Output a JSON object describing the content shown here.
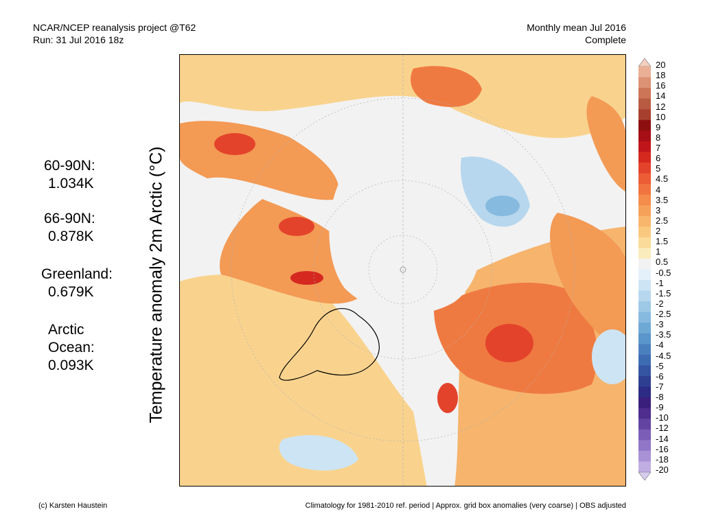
{
  "header": {
    "title_line1": "NCAR/NCEP reanalysis project @T62",
    "title_line2": "Run: 31 Jul 2016 18z",
    "right_line1": "Monthly mean Jul 2016",
    "right_line2": "Complete"
  },
  "vertical_label": "Temperature anomaly 2m Arctic (°C)",
  "stats": [
    {
      "label": "60-90N:",
      "value": "1.034K"
    },
    {
      "label": "66-90N:",
      "value": "0.878K"
    },
    {
      "label": "Greenland:",
      "value": "0.679K"
    },
    {
      "label": "Arctic",
      "label2": "Ocean:",
      "value": "0.093K"
    }
  ],
  "colorbar": {
    "ticks": [
      "20",
      "18",
      "16",
      "14",
      "12",
      "10",
      "9",
      "8",
      "7",
      "6",
      "5",
      "4.5",
      "4",
      "3.5",
      "3",
      "2.5",
      "2",
      "1.5",
      "1",
      "0.5",
      "-0.5",
      "-1",
      "-1.5",
      "-2",
      "-2.5",
      "-3",
      "-3.5",
      "-4",
      "-4.5",
      "-5",
      "-6",
      "-7",
      "-8",
      "-9",
      "-10",
      "-12",
      "-14",
      "-16",
      "-18",
      "-20"
    ],
    "colors": [
      "#f4cfbf",
      "#e9b096",
      "#dc9274",
      "#cc7557",
      "#b95b43",
      "#a8402f",
      "#8e0f0f",
      "#a50f15",
      "#c0161b",
      "#d52920",
      "#e4432b",
      "#ec5c35",
      "#f07440",
      "#f48c4c",
      "#f6a15a",
      "#f8b66c",
      "#f9c97f",
      "#fadb98",
      "#fbecbe",
      "#f2f2f2",
      "#e4f0fa",
      "#cde4f4",
      "#b7d7ee",
      "#9ec9e6",
      "#87badf",
      "#6ea9d6",
      "#5a95cb",
      "#4b80bf",
      "#3e6cb3",
      "#3555a3",
      "#2e3f91",
      "#2c2c86",
      "#3a1f7c",
      "#4e2d8f",
      "#6444a3",
      "#7b5db7",
      "#9176c8",
      "#a991d6",
      "#c0aee3",
      "#d6ccee"
    ]
  },
  "footer": {
    "left": "(c) Karsten Haustein",
    "right": "Climatology for 1981-2010 ref. period | Approx. grid box anomalies (very coarse) | OBS adjusted"
  }
}
